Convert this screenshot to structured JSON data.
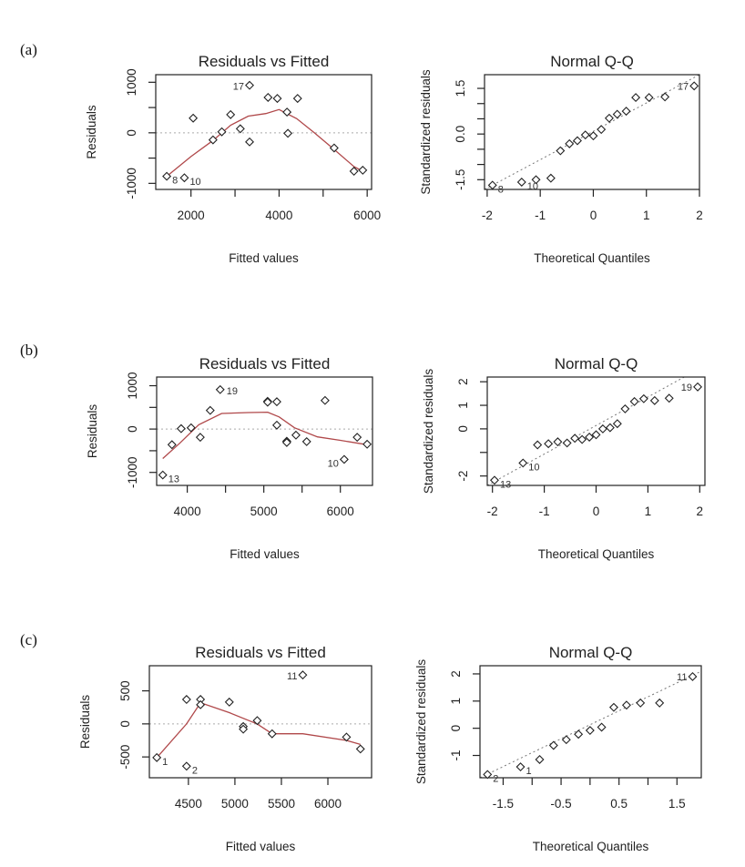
{
  "figure": {
    "panels": [
      {
        "label": "(a)"
      },
      {
        "label": "(b)"
      },
      {
        "label": "(c)"
      }
    ]
  },
  "chart_data": [
    {
      "id": "a-rvf",
      "panel": "(a)",
      "type": "scatter",
      "title": "Residuals vs Fitted",
      "xlabel": "Fitted values",
      "ylabel": "Residuals",
      "xlim": [
        1200,
        6100
      ],
      "ylim": [
        -1120,
        1150
      ],
      "xticks": [
        2000,
        4000,
        6000
      ],
      "xticks_minor": [
        3000,
        5000
      ],
      "yticks": [
        1000,
        0,
        -1000
      ],
      "yticks_minor": [
        500,
        -500
      ],
      "yticklabels": [
        "1000",
        "0",
        "-1000"
      ],
      "xticklabels": [
        "2000",
        "4000",
        "6000"
      ],
      "reference_line": 0,
      "points": [
        {
          "x": 1450,
          "y": -860,
          "label": "8"
        },
        {
          "x": 1850,
          "y": -890,
          "label": "10"
        },
        {
          "x": 2050,
          "y": 290
        },
        {
          "x": 2500,
          "y": -140
        },
        {
          "x": 2700,
          "y": 20
        },
        {
          "x": 2900,
          "y": 360
        },
        {
          "x": 3120,
          "y": 80
        },
        {
          "x": 3330,
          "y": -180
        },
        {
          "x": 3330,
          "y": 940,
          "label": "17"
        },
        {
          "x": 3750,
          "y": 700
        },
        {
          "x": 3960,
          "y": 680
        },
        {
          "x": 4180,
          "y": 410
        },
        {
          "x": 4200,
          "y": -10
        },
        {
          "x": 4420,
          "y": 680
        },
        {
          "x": 5250,
          "y": -300
        },
        {
          "x": 5700,
          "y": -760
        },
        {
          "x": 5900,
          "y": -740
        }
      ],
      "smooth": [
        [
          1450,
          -860
        ],
        [
          2000,
          -470
        ],
        [
          2500,
          -150
        ],
        [
          2900,
          150
        ],
        [
          3300,
          330
        ],
        [
          3700,
          380
        ],
        [
          4000,
          460
        ],
        [
          4400,
          280
        ],
        [
          4800,
          0
        ],
        [
          5250,
          -330
        ],
        [
          5700,
          -670
        ],
        [
          5900,
          -760
        ]
      ]
    },
    {
      "id": "a-qq",
      "panel": "(a)",
      "type": "scatter",
      "title": "Normal Q-Q",
      "xlabel": "Theoretical Quantiles",
      "ylabel": "Standardized residuals",
      "xlim": [
        -2.05,
        2.0
      ],
      "ylim": [
        -1.82,
        1.95
      ],
      "xticks": [
        -2,
        -1,
        0,
        1,
        2
      ],
      "xticklabels": [
        "-2",
        "-1",
        "0",
        "1",
        "2"
      ],
      "yticks": [
        1.5,
        0.0,
        -1.5
      ],
      "yticks_minor": [
        1.0,
        0.5,
        -0.5,
        -1.0
      ],
      "yticklabels": [
        "1.5",
        "0.0",
        "-1.5"
      ],
      "reference_line": [
        [
          -2.05,
          -1.82
        ],
        [
          2.0,
          1.95
        ]
      ],
      "points": [
        {
          "x": -1.9,
          "y": -1.68,
          "label": "8"
        },
        {
          "x": -1.35,
          "y": -1.58,
          "label": "10"
        },
        {
          "x": -1.08,
          "y": -1.5
        },
        {
          "x": -0.8,
          "y": -1.45
        },
        {
          "x": -0.62,
          "y": -0.55
        },
        {
          "x": -0.45,
          "y": -0.32
        },
        {
          "x": -0.3,
          "y": -0.22
        },
        {
          "x": -0.15,
          "y": -0.03
        },
        {
          "x": 0.0,
          "y": -0.06
        },
        {
          "x": 0.15,
          "y": 0.15
        },
        {
          "x": 0.3,
          "y": 0.52
        },
        {
          "x": 0.45,
          "y": 0.65
        },
        {
          "x": 0.62,
          "y": 0.75
        },
        {
          "x": 0.8,
          "y": 1.2
        },
        {
          "x": 1.05,
          "y": 1.2
        },
        {
          "x": 1.35,
          "y": 1.22
        },
        {
          "x": 1.9,
          "y": 1.58,
          "label": "17"
        }
      ]
    },
    {
      "id": "b-rvf",
      "panel": "(b)",
      "type": "scatter",
      "title": "Residuals vs Fitted",
      "xlabel": "Fitted values",
      "ylabel": "Residuals",
      "xlim": [
        3600,
        6420
      ],
      "ylim": [
        -1300,
        1200
      ],
      "xticks": [
        4000,
        5000,
        6000
      ],
      "xticks_minor": [
        4500,
        5500
      ],
      "xticklabels": [
        "4000",
        "5000",
        "6000"
      ],
      "yticks": [
        1000,
        0,
        -1000
      ],
      "yticks_minor": [
        500,
        -500
      ],
      "yticklabels": [
        "1000",
        "0",
        "-1000"
      ],
      "reference_line": 0,
      "points": [
        {
          "x": 3680,
          "y": -1060,
          "label": "13"
        },
        {
          "x": 3800,
          "y": -360
        },
        {
          "x": 3920,
          "y": 10
        },
        {
          "x": 4050,
          "y": 30
        },
        {
          "x": 4170,
          "y": -190
        },
        {
          "x": 4300,
          "y": 430
        },
        {
          "x": 4430,
          "y": 910,
          "label": "19"
        },
        {
          "x": 5050,
          "y": 640
        },
        {
          "x": 5050,
          "y": 620
        },
        {
          "x": 5170,
          "y": 630
        },
        {
          "x": 5170,
          "y": 90
        },
        {
          "x": 5300,
          "y": -280
        },
        {
          "x": 5300,
          "y": -310
        },
        {
          "x": 5420,
          "y": -140
        },
        {
          "x": 5560,
          "y": -290
        },
        {
          "x": 5800,
          "y": 660
        },
        {
          "x": 6050,
          "y": -700,
          "label": "10"
        },
        {
          "x": 6220,
          "y": -190
        },
        {
          "x": 6350,
          "y": -350
        }
      ],
      "smooth": [
        [
          3680,
          -680
        ],
        [
          3900,
          -330
        ],
        [
          4150,
          100
        ],
        [
          4450,
          360
        ],
        [
          4800,
          380
        ],
        [
          5050,
          390
        ],
        [
          5200,
          280
        ],
        [
          5400,
          30
        ],
        [
          5700,
          -180
        ],
        [
          6000,
          -260
        ],
        [
          6350,
          -360
        ]
      ]
    },
    {
      "id": "b-qq",
      "panel": "(b)",
      "type": "scatter",
      "title": "Normal Q-Q",
      "xlabel": "Theoretical Quantiles",
      "ylabel": "Standardized residuals",
      "xlim": [
        -2.1,
        2.1
      ],
      "ylim": [
        -2.4,
        2.2
      ],
      "xticks": [
        -2,
        -1,
        0,
        1,
        2
      ],
      "xticklabels": [
        "-2",
        "-1",
        "0",
        "1",
        "2"
      ],
      "yticks": [
        2,
        1,
        0,
        -1,
        -2
      ],
      "yticklabels": [
        "2",
        "1",
        "0",
        "",
        "-2"
      ],
      "reference_line": [
        [
          -2.1,
          -2.4
        ],
        [
          1.7,
          2.2
        ]
      ],
      "points": [
        {
          "x": -1.96,
          "y": -2.18,
          "label": "13"
        },
        {
          "x": -1.41,
          "y": -1.45,
          "label": "10"
        },
        {
          "x": -1.13,
          "y": -0.68
        },
        {
          "x": -0.92,
          "y": -0.63
        },
        {
          "x": -0.74,
          "y": -0.55
        },
        {
          "x": -0.56,
          "y": -0.6
        },
        {
          "x": -0.41,
          "y": -0.4
        },
        {
          "x": -0.27,
          "y": -0.45
        },
        {
          "x": -0.13,
          "y": -0.35
        },
        {
          "x": 0.0,
          "y": -0.25
        },
        {
          "x": 0.13,
          "y": 0.0
        },
        {
          "x": 0.27,
          "y": 0.05
        },
        {
          "x": 0.41,
          "y": 0.22
        },
        {
          "x": 0.56,
          "y": 0.85
        },
        {
          "x": 0.74,
          "y": 1.16
        },
        {
          "x": 0.92,
          "y": 1.28
        },
        {
          "x": 1.13,
          "y": 1.2
        },
        {
          "x": 1.41,
          "y": 1.3
        },
        {
          "x": 1.96,
          "y": 1.78,
          "label": "19"
        }
      ]
    },
    {
      "id": "c-rvf",
      "panel": "(c)",
      "type": "scatter",
      "title": "Residuals vs Fitted",
      "xlabel": "Fitted values",
      "ylabel": "Residuals",
      "xlim": [
        4080,
        6470
      ],
      "ylim": [
        -815,
        880
      ],
      "xticks": [
        4500,
        5000,
        5500,
        6000
      ],
      "xticklabels": [
        "4500",
        "5000",
        "5500",
        "6000"
      ],
      "yticks": [
        500,
        0,
        -500
      ],
      "yticklabels": [
        "500",
        "0",
        "-500"
      ],
      "reference_line": 0,
      "points": [
        {
          "x": 4160,
          "y": -510,
          "label": "1"
        },
        {
          "x": 4480,
          "y": 370
        },
        {
          "x": 4480,
          "y": -640,
          "label": "2"
        },
        {
          "x": 4630,
          "y": 370
        },
        {
          "x": 4630,
          "y": 290
        },
        {
          "x": 4940,
          "y": 330
        },
        {
          "x": 5090,
          "y": -40
        },
        {
          "x": 5090,
          "y": -80
        },
        {
          "x": 5240,
          "y": 50
        },
        {
          "x": 5400,
          "y": -150
        },
        {
          "x": 5730,
          "y": 740,
          "label": "11"
        },
        {
          "x": 6200,
          "y": -200
        },
        {
          "x": 6350,
          "y": -380
        }
      ],
      "smooth": [
        [
          4160,
          -510
        ],
        [
          4480,
          0
        ],
        [
          4630,
          320
        ],
        [
          4940,
          170
        ],
        [
          5240,
          0
        ],
        [
          5400,
          -150
        ],
        [
          5730,
          -150
        ],
        [
          6200,
          -250
        ],
        [
          6350,
          -310
        ]
      ]
    },
    {
      "id": "c-qq",
      "panel": "(c)",
      "type": "scatter",
      "title": "Normal Q-Q",
      "xlabel": "Theoretical Quantiles",
      "ylabel": "Standardized residuals",
      "xlim": [
        -1.9,
        1.92
      ],
      "ylim": [
        -1.82,
        2.3
      ],
      "xticks": [
        -1.5,
        -1.0,
        -0.5,
        0.0,
        0.5,
        1.0,
        1.5
      ],
      "xticklabels": [
        "-1.5",
        "",
        "-0.5",
        "",
        "0.5",
        "",
        "1.5"
      ],
      "yticks": [
        2,
        1,
        0,
        -1
      ],
      "yticklabels": [
        "2",
        "1",
        "0",
        "-1"
      ],
      "reference_line": [
        [
          -1.9,
          -1.82
        ],
        [
          1.92,
          2.1
        ]
      ],
      "points": [
        {
          "x": -1.77,
          "y": -1.7,
          "label": "2"
        },
        {
          "x": -1.2,
          "y": -1.42,
          "label": "1"
        },
        {
          "x": -0.87,
          "y": -1.15
        },
        {
          "x": -0.63,
          "y": -0.63
        },
        {
          "x": -0.41,
          "y": -0.42
        },
        {
          "x": -0.2,
          "y": -0.22
        },
        {
          "x": 0.0,
          "y": -0.08
        },
        {
          "x": 0.2,
          "y": 0.04
        },
        {
          "x": 0.41,
          "y": 0.77
        },
        {
          "x": 0.63,
          "y": 0.85
        },
        {
          "x": 0.87,
          "y": 0.93
        },
        {
          "x": 1.2,
          "y": 0.93
        },
        {
          "x": 1.77,
          "y": 1.9,
          "label": "11"
        }
      ]
    }
  ]
}
